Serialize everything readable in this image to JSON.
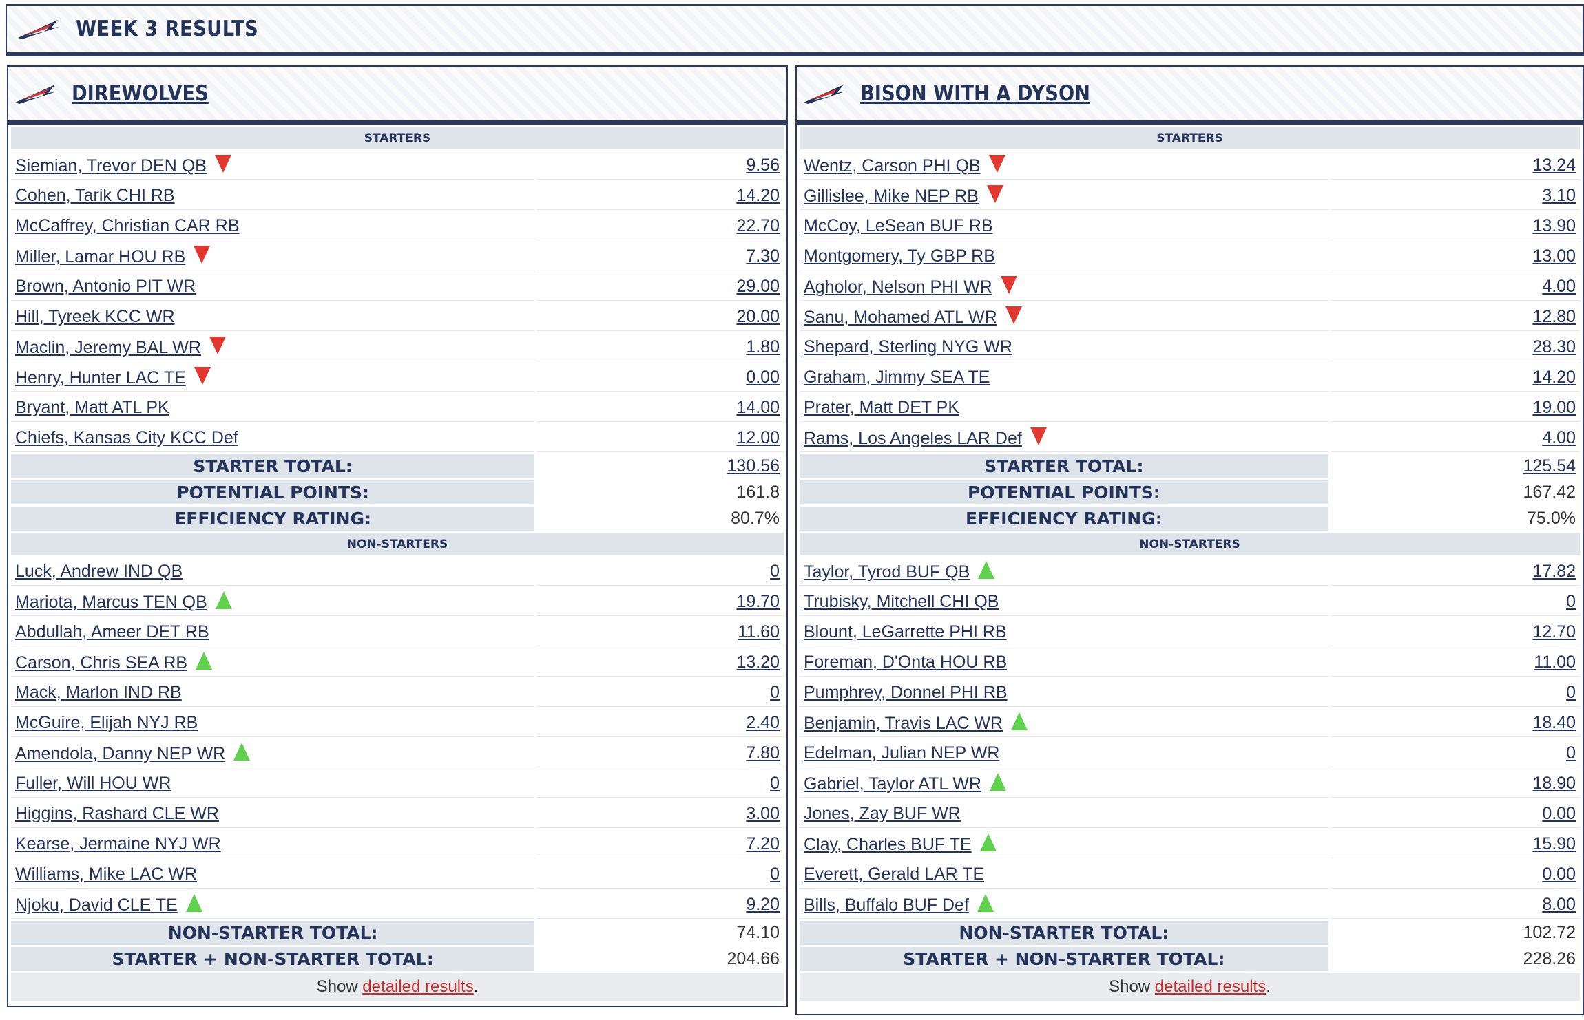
{
  "header": {
    "title": "WEEK 3 RESULTS"
  },
  "labels": {
    "starters": "STARTERS",
    "non_starters": "NON-STARTERS",
    "starter_total": "STARTER TOTAL:",
    "potential_points": "POTENTIAL POINTS:",
    "efficiency_rating": "EFFICIENCY RATING:",
    "non_starter_total": "NON-STARTER TOTAL:",
    "combined_total": "STARTER + NON-STARTER TOTAL:",
    "show_prefix": "Show ",
    "show_link": "detailed results",
    "show_suffix": "."
  },
  "colors": {
    "navy": "#24335a",
    "arrow_down": "#e2382f",
    "arrow_up": "#5fd14c",
    "link_red": "#c62b2b"
  },
  "teams": [
    {
      "name": "DIREWOLVES",
      "starters": [
        {
          "name": "Siemian, Trevor DEN QB",
          "points": "9.56",
          "arrow": "down"
        },
        {
          "name": "Cohen, Tarik CHI RB",
          "points": "14.20",
          "arrow": ""
        },
        {
          "name": "McCaffrey, Christian CAR RB",
          "points": "22.70",
          "arrow": ""
        },
        {
          "name": "Miller, Lamar HOU RB",
          "points": "7.30",
          "arrow": "down"
        },
        {
          "name": "Brown, Antonio PIT WR",
          "points": "29.00",
          "arrow": ""
        },
        {
          "name": "Hill, Tyreek KCC WR",
          "points": "20.00",
          "arrow": ""
        },
        {
          "name": "Maclin, Jeremy BAL WR",
          "points": "1.80",
          "arrow": "down"
        },
        {
          "name": "Henry, Hunter LAC TE",
          "points": "0.00",
          "arrow": "down"
        },
        {
          "name": "Bryant, Matt ATL PK",
          "points": "14.00",
          "arrow": ""
        },
        {
          "name": "Chiefs, Kansas City KCC Def",
          "points": "12.00",
          "arrow": ""
        }
      ],
      "starter_total": "130.56",
      "potential_points": "161.8",
      "efficiency_rating": "80.7%",
      "non_starters": [
        {
          "name": "Luck, Andrew IND QB",
          "points": "0",
          "arrow": ""
        },
        {
          "name": "Mariota, Marcus TEN QB",
          "points": "19.70",
          "arrow": "up"
        },
        {
          "name": "Abdullah, Ameer DET RB",
          "points": "11.60",
          "arrow": ""
        },
        {
          "name": "Carson, Chris SEA RB",
          "points": "13.20",
          "arrow": "up"
        },
        {
          "name": "Mack, Marlon IND RB",
          "points": "0",
          "arrow": ""
        },
        {
          "name": "McGuire, Elijah NYJ RB",
          "points": "2.40",
          "arrow": ""
        },
        {
          "name": "Amendola, Danny NEP WR",
          "points": "7.80",
          "arrow": "up"
        },
        {
          "name": "Fuller, Will HOU WR",
          "points": "0",
          "arrow": ""
        },
        {
          "name": "Higgins, Rashard CLE WR",
          "points": "3.00",
          "arrow": ""
        },
        {
          "name": "Kearse, Jermaine NYJ WR",
          "points": "7.20",
          "arrow": ""
        },
        {
          "name": "Williams, Mike LAC WR",
          "points": "0",
          "arrow": ""
        },
        {
          "name": "Njoku, David CLE TE",
          "points": "9.20",
          "arrow": "up"
        }
      ],
      "non_starter_total": "74.10",
      "combined_total": "204.66"
    },
    {
      "name": "BISON WITH A DYSON",
      "starters": [
        {
          "name": "Wentz, Carson PHI QB",
          "points": "13.24",
          "arrow": "down"
        },
        {
          "name": "Gillislee, Mike NEP RB",
          "points": "3.10",
          "arrow": "down"
        },
        {
          "name": "McCoy, LeSean BUF RB",
          "points": "13.90",
          "arrow": ""
        },
        {
          "name": "Montgomery, Ty GBP RB",
          "points": "13.00",
          "arrow": ""
        },
        {
          "name": "Agholor, Nelson PHI WR",
          "points": "4.00",
          "arrow": "down"
        },
        {
          "name": "Sanu, Mohamed ATL WR",
          "points": "12.80",
          "arrow": "down"
        },
        {
          "name": "Shepard, Sterling NYG WR",
          "points": "28.30",
          "arrow": ""
        },
        {
          "name": "Graham, Jimmy SEA TE",
          "points": "14.20",
          "arrow": ""
        },
        {
          "name": "Prater, Matt DET PK",
          "points": "19.00",
          "arrow": ""
        },
        {
          "name": "Rams, Los Angeles LAR Def",
          "points": "4.00",
          "arrow": "down"
        }
      ],
      "starter_total": "125.54",
      "potential_points": "167.42",
      "efficiency_rating": "75.0%",
      "non_starters": [
        {
          "name": "Taylor, Tyrod BUF QB",
          "points": "17.82",
          "arrow": "up"
        },
        {
          "name": "Trubisky, Mitchell CHI QB",
          "points": "0",
          "arrow": ""
        },
        {
          "name": "Blount, LeGarrette PHI RB",
          "points": "12.70",
          "arrow": ""
        },
        {
          "name": "Foreman, D'Onta HOU RB",
          "points": "11.00",
          "arrow": ""
        },
        {
          "name": "Pumphrey, Donnel PHI RB",
          "points": "0",
          "arrow": ""
        },
        {
          "name": "Benjamin, Travis LAC WR",
          "points": "18.40",
          "arrow": "up"
        },
        {
          "name": "Edelman, Julian NEP WR",
          "points": "0",
          "arrow": ""
        },
        {
          "name": "Gabriel, Taylor ATL WR",
          "points": "18.90",
          "arrow": "up"
        },
        {
          "name": "Jones, Zay BUF WR",
          "points": "0.00",
          "arrow": ""
        },
        {
          "name": "Clay, Charles BUF TE",
          "points": "15.90",
          "arrow": "up"
        },
        {
          "name": "Everett, Gerald LAR TE",
          "points": "0.00",
          "arrow": ""
        },
        {
          "name": "Bills, Buffalo BUF Def",
          "points": "8.00",
          "arrow": "up"
        }
      ],
      "non_starter_total": "102.72",
      "combined_total": "228.26"
    }
  ]
}
